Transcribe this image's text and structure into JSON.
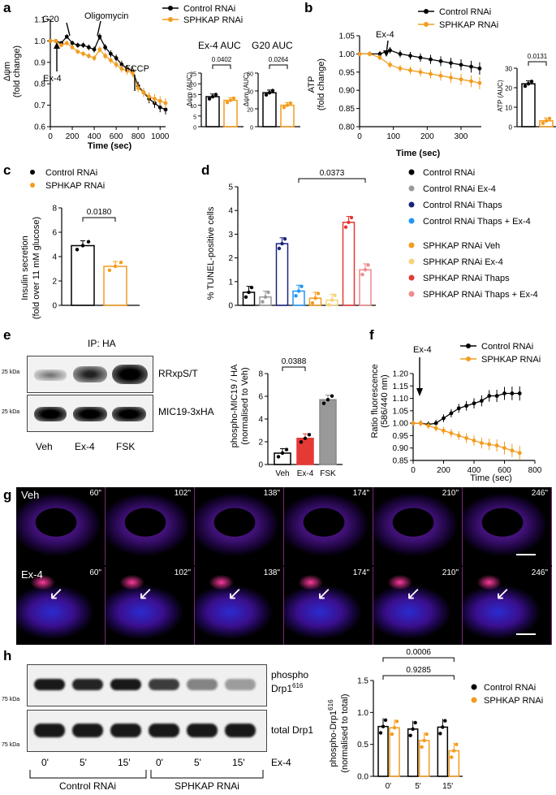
{
  "panels": {
    "a": {
      "letter": "a",
      "ylabel_l1": "Δψm",
      "ylabel_l2": "(fold change)",
      "xlabel": "Time (sec)",
      "yticks": [
        "0.6",
        "0.7",
        "0.8",
        "0.9",
        "1.0",
        "1.1"
      ],
      "xticks": [
        "0",
        "200",
        "400",
        "600",
        "800",
        "1000"
      ],
      "annotations": {
        "ex4": "Ex-4",
        "g20": "G20",
        "oligo": "Oligomycin",
        "fccp": "FCCP"
      },
      "legend": [
        "Control RNAi",
        "SPHKAP RNAi"
      ],
      "auc1": {
        "title": "Ex-4 AUC",
        "ylabel": "Δψm (AUC)",
        "pvalue": "0.0402"
      },
      "auc2": {
        "title": "G20 AUC",
        "ylabel": "Δψm (AUC)",
        "pvalue": "0.0264"
      }
    },
    "b": {
      "letter": "b",
      "ylabel_l1": "ATP",
      "ylabel_l2": "(fold change)",
      "xlabel": "Time (sec)",
      "yticks": [
        "0.80",
        "0.85",
        "0.90",
        "0.95",
        "1.00",
        "1.05"
      ],
      "xticks": [
        "0",
        "100",
        "200",
        "300"
      ],
      "annotation": "Ex-4",
      "legend": [
        "Control RNAi",
        "SPHKAP RNAi"
      ],
      "bar": {
        "ylabel": "ATP (AUC)",
        "yticks": [
          "0",
          "10",
          "20",
          "30"
        ],
        "pvalue": "0.0131"
      }
    },
    "c": {
      "letter": "c",
      "legend": [
        "Control RNAi",
        "SPHKAP RNAi"
      ],
      "ylabel_l1": "Insulin secretion",
      "ylabel_l2": "(fold over 11 mM glucose)",
      "yticks": [
        "0",
        "2",
        "4",
        "6",
        "8"
      ],
      "pvalue": "0.0180"
    },
    "d": {
      "letter": "d",
      "ylabel": "% TUNEL-positive cells",
      "yticks": [
        "0",
        "1",
        "2",
        "3",
        "4",
        "5"
      ],
      "pvalue": "0.0373",
      "legend": [
        "Control RNAi",
        "Control RNAi Ex-4",
        "Control RNAi Thaps",
        "Control RNAi Thaps + Ex-4",
        "SPHKAP RNAi Veh",
        "SPHKAP RNAi Ex-4",
        "SPHKAP RNAi Thaps",
        "SPHKAP RNAi Thaps + Ex-4"
      ]
    },
    "e": {
      "letter": "e",
      "ip": "IP: HA",
      "blot1": "RRxpS/T",
      "blot2": "MIC19-3xHA",
      "kda1": "25 kDa",
      "kda2": "25 kDa",
      "lanes": [
        "Veh",
        "Ex-4",
        "FSK"
      ],
      "ylabel_l1": "phospho-MIC19 / HA",
      "ylabel_l2": "(normalised to Veh)",
      "yticks": [
        "0",
        "2",
        "4",
        "6",
        "8"
      ],
      "pvalue": "0.0388"
    },
    "f": {
      "letter": "f",
      "ylabel_l1": "Ratio fluorescence",
      "ylabel_l2": "(586/440 nm)",
      "xlabel": "Time (sec)",
      "yticks": [
        "0.85",
        "0.90",
        "0.95",
        "1.00",
        "1.05",
        "1.10",
        "1.15",
        "1.20"
      ],
      "xticks": [
        "0",
        "200",
        "400",
        "600",
        "800"
      ],
      "annotation": "Ex-4",
      "legend": [
        "Control RNAi",
        "SPHKAP RNAi"
      ]
    },
    "g": {
      "letter": "g",
      "rows": [
        "Veh",
        "Ex-4"
      ],
      "times": [
        "60\"",
        "102\"",
        "138\"",
        "174\"",
        "210\"",
        "246\""
      ]
    },
    "h": {
      "letter": "h",
      "blot1_l1": "phospho",
      "blot1_l2": "Drp1",
      "blot1_sup": "616",
      "blot2": "total Drp1",
      "kda1": "75 kDa",
      "kda2": "75 kDa",
      "lanes": [
        "0'",
        "5'",
        "15'",
        "0'",
        "5'",
        "15'"
      ],
      "ex4": "Ex-4",
      "group1": "Control RNAi",
      "group2": "SPHKAP RNAi",
      "ylabel_l1": "phospho-Drp1",
      "ylabel_sup": "616",
      "ylabel_l2": "(normalised to total)",
      "yticks": [
        "0.0",
        "0.5",
        "1.0",
        "1.5"
      ],
      "xticks": [
        "0'",
        "5'",
        "15'"
      ],
      "p1": "0.9285",
      "p2": "0.0006",
      "legend": [
        "Control RNAi",
        "SPHKAP RNAi"
      ]
    }
  },
  "colors": {
    "control": "#000000",
    "sphkap": "#f39c1e"
  },
  "chart_data": [
    {
      "id": "a-trace",
      "type": "line",
      "xlabel": "Time (sec)",
      "ylabel": "Δψm (fold change)",
      "xlim": [
        0,
        1050
      ],
      "ylim": [
        0.6,
        1.1
      ],
      "series": [
        {
          "name": "Control RNAi",
          "x": [
            0,
            50,
            100,
            150,
            200,
            250,
            300,
            350,
            400,
            450,
            500,
            550,
            600,
            650,
            700,
            750,
            800,
            850,
            900,
            950,
            1000,
            1050
          ],
          "y": [
            1.0,
            1.0,
            0.99,
            1.02,
            0.99,
            0.98,
            0.98,
            0.97,
            0.96,
            1.02,
            0.97,
            0.94,
            0.92,
            0.89,
            0.87,
            0.86,
            0.79,
            0.76,
            0.73,
            0.71,
            0.69,
            0.68
          ]
        },
        {
          "name": "SPHKAP RNAi",
          "x": [
            0,
            50,
            100,
            150,
            200,
            250,
            300,
            350,
            400,
            450,
            500,
            550,
            600,
            650,
            700,
            750,
            800,
            850,
            900,
            950,
            1000,
            1050
          ],
          "y": [
            1.0,
            1.0,
            0.98,
            0.99,
            0.97,
            0.95,
            0.94,
            0.93,
            0.92,
            0.96,
            0.93,
            0.91,
            0.89,
            0.87,
            0.86,
            0.85,
            0.78,
            0.76,
            0.74,
            0.73,
            0.72,
            0.71
          ]
        }
      ]
    },
    {
      "id": "a-ex4auc",
      "type": "bar",
      "title": "Ex-4 AUC",
      "categories": [
        "Control RNAi",
        "SPHKAP RNAi"
      ],
      "values": [
        14,
        12.3
      ],
      "ylim": [
        0,
        25
      ]
    },
    {
      "id": "a-g20auc",
      "type": "bar",
      "title": "G20 AUC",
      "categories": [
        "Control RNAi",
        "SPHKAP RNAi"
      ],
      "values": [
        38,
        24
      ],
      "ylim": [
        0,
        60
      ]
    },
    {
      "id": "b-trace",
      "type": "line",
      "xlabel": "Time (sec)",
      "ylabel": "ATP (fold change)",
      "xlim": [
        0,
        360
      ],
      "ylim": [
        0.8,
        1.05
      ],
      "series": [
        {
          "name": "Control RNAi",
          "x": [
            0,
            30,
            60,
            90,
            120,
            150,
            180,
            210,
            240,
            270,
            300,
            330,
            355
          ],
          "y": [
            1.0,
            1.0,
            1.0,
            1.01,
            1.0,
            0.995,
            0.99,
            0.985,
            0.98,
            0.975,
            0.97,
            0.965,
            0.96
          ]
        },
        {
          "name": "SPHKAP RNAi",
          "x": [
            0,
            30,
            60,
            90,
            120,
            150,
            180,
            210,
            240,
            270,
            300,
            330,
            355
          ],
          "y": [
            1.0,
            1.0,
            0.99,
            0.97,
            0.96,
            0.955,
            0.95,
            0.945,
            0.94,
            0.935,
            0.93,
            0.925,
            0.92
          ]
        }
      ]
    },
    {
      "id": "b-bar",
      "type": "bar",
      "ylabel": "ATP (AUC)",
      "categories": [
        "Control RNAi",
        "SPHKAP RNAi"
      ],
      "values": [
        22,
        3
      ],
      "ylim": [
        0,
        30
      ]
    },
    {
      "id": "c-bar",
      "type": "bar",
      "ylabel": "Insulin secretion (fold over 11 mM glucose)",
      "categories": [
        "Control RNAi",
        "SPHKAP RNAi"
      ],
      "values": [
        4.9,
        3.2
      ],
      "ylim": [
        0,
        8
      ]
    },
    {
      "id": "d-bar",
      "type": "bar",
      "ylabel": "% TUNEL-positive cells",
      "categories": [
        "Control RNAi",
        "Control RNAi Ex-4",
        "Control RNAi Thaps",
        "Control RNAi Thaps + Ex-4",
        "SPHKAP RNAi Veh",
        "SPHKAP RNAi Ex-4",
        "SPHKAP RNAi Thaps",
        "SPHKAP RNAi Thaps + Ex-4"
      ],
      "values": [
        0.55,
        0.35,
        2.6,
        0.6,
        0.3,
        0.22,
        3.5,
        1.5
      ],
      "ylim": [
        0,
        5
      ]
    },
    {
      "id": "e-bar",
      "type": "bar",
      "ylabel": "phospho-MIC19 / HA (normalised to Veh)",
      "categories": [
        "Veh",
        "Ex-4",
        "FSK"
      ],
      "values": [
        1.0,
        2.3,
        5.7
      ],
      "ylim": [
        0,
        8
      ]
    },
    {
      "id": "f-trace",
      "type": "line",
      "xlabel": "Time (sec)",
      "ylabel": "Ratio fluorescence (586/440 nm)",
      "xlim": [
        0,
        800
      ],
      "ylim": [
        0.85,
        1.2
      ],
      "series": [
        {
          "name": "Control RNAi",
          "x": [
            0,
            50,
            100,
            150,
            200,
            250,
            300,
            350,
            400,
            450,
            500,
            550,
            600,
            650,
            700
          ],
          "y": [
            1.0,
            1.0,
            0.995,
            1.0,
            1.02,
            1.04,
            1.06,
            1.07,
            1.08,
            1.09,
            1.11,
            1.11,
            1.12,
            1.12,
            1.12
          ]
        },
        {
          "name": "SPHKAP RNAi",
          "x": [
            0,
            50,
            100,
            150,
            200,
            250,
            300,
            350,
            400,
            450,
            500,
            550,
            600,
            650,
            700
          ],
          "y": [
            1.0,
            1.0,
            0.99,
            0.98,
            0.97,
            0.96,
            0.95,
            0.94,
            0.93,
            0.92,
            0.915,
            0.91,
            0.9,
            0.89,
            0.88
          ]
        }
      ]
    },
    {
      "id": "h-bar",
      "type": "bar",
      "ylabel": "phospho-Drp1 616 (normalised to total)",
      "categories": [
        "0'",
        "5'",
        "15'"
      ],
      "series": [
        {
          "name": "Control RNAi",
          "values": [
            0.78,
            0.74,
            0.77
          ]
        },
        {
          "name": "SPHKAP RNAi",
          "values": [
            0.76,
            0.56,
            0.4
          ]
        }
      ],
      "ylim": [
        0,
        1.5
      ]
    }
  ]
}
